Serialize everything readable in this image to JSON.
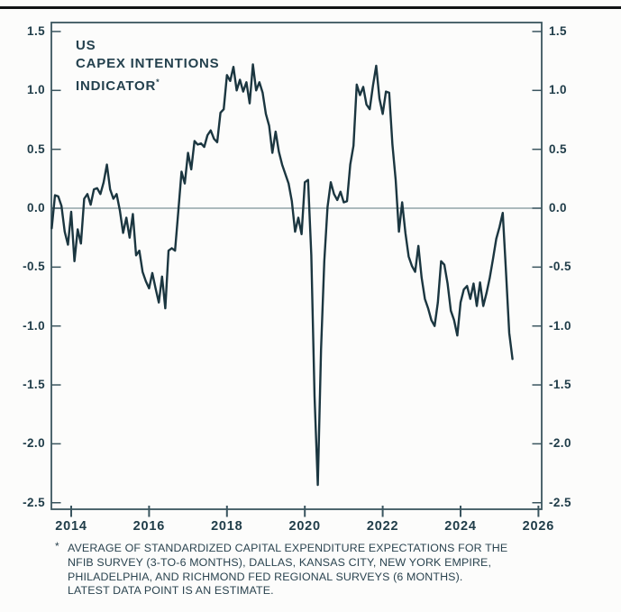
{
  "title": {
    "line1": "US",
    "line2": "CAPEX INTENTIONS",
    "line3": "INDICATOR",
    "marker": "*"
  },
  "footnote": {
    "marker": "*",
    "lines": [
      "AVERAGE OF STANDARDIZED CAPITAL EXPENDITURE EXPECTATIONS FOR THE",
      "NFIB SURVEY (3-TO-6 MONTHS), DALLAS, KANSAS CITY, NEW YORK EMPIRE,",
      "PHILADELPHIA, AND RICHMOND FED REGIONAL SURVEYS (6 MONTHS).",
      "LATEST DATA POINT IS AN ESTIMATE."
    ]
  },
  "chart_data": {
    "type": "line",
    "title": "US CAPEX INTENTIONS INDICATOR*",
    "series_name": "US capex intentions indicator (monthly, standardized)",
    "x_start_year": 2013.5,
    "x_step_years": 0.0833333,
    "x_unit": "decimal year (monthly data, Jul 2013 - May 2025)",
    "values": [
      -0.17,
      0.11,
      0.1,
      0.02,
      -0.2,
      -0.31,
      -0.03,
      -0.45,
      -0.18,
      -0.3,
      0.08,
      0.12,
      0.03,
      0.16,
      0.17,
      0.12,
      0.22,
      0.37,
      0.16,
      0.08,
      0.12,
      -0.02,
      -0.21,
      -0.08,
      -0.25,
      -0.05,
      -0.4,
      -0.36,
      -0.54,
      -0.62,
      -0.68,
      -0.55,
      -0.68,
      -0.8,
      -0.58,
      -0.85,
      -0.36,
      -0.34,
      -0.36,
      -0.03,
      0.31,
      0.21,
      0.47,
      0.33,
      0.57,
      0.54,
      0.55,
      0.52,
      0.62,
      0.66,
      0.59,
      0.56,
      0.81,
      0.84,
      1.13,
      1.08,
      1.2,
      1.0,
      1.09,
      0.99,
      1.07,
      0.89,
      1.22,
      1.0,
      1.07,
      0.98,
      0.8,
      0.7,
      0.47,
      0.65,
      0.48,
      0.37,
      0.29,
      0.21,
      0.06,
      -0.2,
      -0.08,
      -0.22,
      0.22,
      0.24,
      -0.4,
      -1.6,
      -2.35,
      -1.2,
      -0.45,
      0.01,
      0.22,
      0.12,
      0.07,
      0.14,
      0.05,
      0.06,
      0.37,
      0.53,
      1.05,
      0.96,
      1.03,
      0.88,
      0.84,
      1.04,
      1.21,
      0.93,
      0.8,
      0.99,
      0.98,
      0.54,
      0.24,
      -0.2,
      0.05,
      -0.21,
      -0.41,
      -0.49,
      -0.54,
      -0.32,
      -0.59,
      -0.77,
      -0.85,
      -0.95,
      -1.0,
      -0.8,
      -0.45,
      -0.48,
      -0.64,
      -0.87,
      -0.95,
      -1.08,
      -0.8,
      -0.69,
      -0.66,
      -0.77,
      -0.64,
      -0.83,
      -0.63,
      -0.83,
      -0.72,
      -0.59,
      -0.43,
      -0.26,
      -0.16,
      -0.04,
      -0.54,
      -1.06,
      -1.28
    ],
    "xlim": [
      2013.49,
      2026.08
    ],
    "ylim": [
      -2.556,
      1.576
    ],
    "xticks_values": [
      2014,
      2016,
      2018,
      2020,
      2022,
      2024,
      2026
    ],
    "xticks_labels": [
      "2014",
      "2016",
      "2018",
      "2020",
      "2022",
      "2024",
      "2026"
    ],
    "yticks_values": [
      1.5,
      1.0,
      0.5,
      0.0,
      -0.5,
      -1.0,
      -1.5,
      -2.0,
      -2.5
    ],
    "yticks_labels": [
      "1.5",
      "1.0",
      "0.5",
      "0.0",
      "-0.5",
      "-1.0",
      "-1.5",
      "-2.0",
      "-2.5"
    ],
    "y_axis_sides": "both",
    "grid": false,
    "legend": null,
    "zero_line": true,
    "line_color": "#1b3640",
    "axis_color": "#3a555f",
    "zero_line_color": "#7d9298",
    "label_color": "#203d49"
  }
}
